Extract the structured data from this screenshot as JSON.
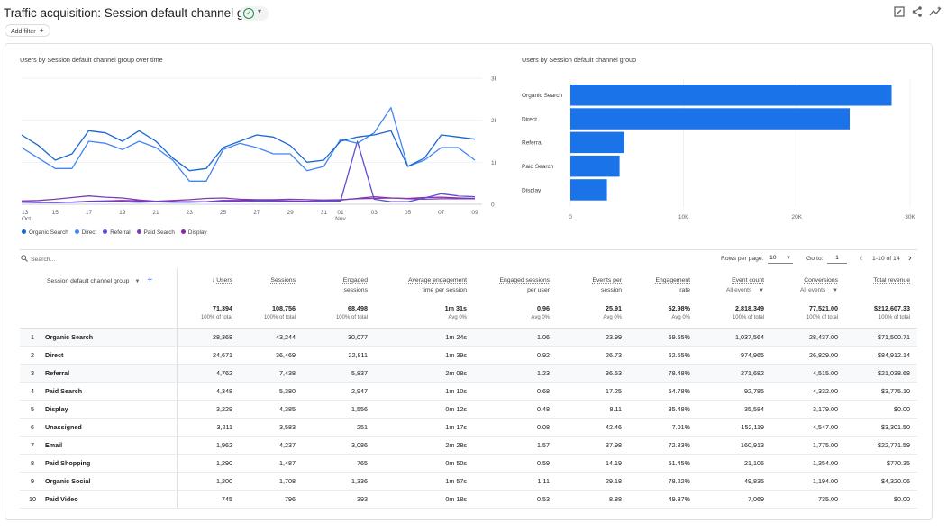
{
  "page": {
    "title": "Traffic acquisition: Session default channel group",
    "add_filter_label": "Add filter",
    "add_filter_plus": "+"
  },
  "colors": {
    "organic_search": "#1967d2",
    "direct": "#4285f4",
    "referral": "#5a4fcf",
    "paid_search": "#7b3fb0",
    "display": "#8e24aa",
    "bar": "#1a73e8"
  },
  "line_chart": {
    "title": "Users by Session default channel group over time",
    "y_ticks": [
      "3K",
      "2K",
      "1K",
      "0"
    ],
    "x_ticks": [
      "13",
      "15",
      "17",
      "19",
      "21",
      "23",
      "25",
      "27",
      "29",
      "31",
      "01",
      "03",
      "05",
      "07",
      "09"
    ],
    "x_tick_month_labels": [
      {
        "tick_index": 0,
        "label": "Oct"
      },
      {
        "tick_index": 10,
        "label": "Nov"
      }
    ]
  },
  "bar_chart": {
    "title": "Users by Session default channel group",
    "x_ticks": [
      "0",
      "10K",
      "20K",
      "30K"
    ]
  },
  "legend": [
    {
      "label": "Organic Search",
      "color_key": "organic_search"
    },
    {
      "label": "Direct",
      "color_key": "direct"
    },
    {
      "label": "Referral",
      "color_key": "referral"
    },
    {
      "label": "Paid Search",
      "color_key": "paid_search"
    },
    {
      "label": "Display",
      "color_key": "display"
    }
  ],
  "chart_data": [
    {
      "type": "line",
      "title": "Users by Session default channel group over time",
      "x": [
        "Oct 13",
        "Oct 14",
        "Oct 15",
        "Oct 16",
        "Oct 17",
        "Oct 18",
        "Oct 19",
        "Oct 20",
        "Oct 21",
        "Oct 22",
        "Oct 23",
        "Oct 24",
        "Oct 25",
        "Oct 26",
        "Oct 27",
        "Oct 28",
        "Oct 29",
        "Oct 30",
        "Oct 31",
        "Nov 01",
        "Nov 02",
        "Nov 03",
        "Nov 04",
        "Nov 05",
        "Nov 06",
        "Nov 07",
        "Nov 08",
        "Nov 09"
      ],
      "ylim": [
        0,
        3000
      ],
      "y_ticks": [
        0,
        1000,
        2000,
        3000
      ],
      "series": [
        {
          "name": "Organic Search",
          "values": [
            1650,
            1400,
            1050,
            1200,
            1750,
            1700,
            1500,
            1750,
            1500,
            1100,
            800,
            850,
            1350,
            1500,
            1650,
            1600,
            1400,
            1000,
            1050,
            1500,
            1600,
            1650,
            1750,
            900,
            1100,
            1650,
            1600,
            1550
          ]
        },
        {
          "name": "Direct",
          "values": [
            1350,
            1100,
            850,
            850,
            1500,
            1450,
            1300,
            1500,
            1350,
            1050,
            550,
            550,
            1300,
            1450,
            1350,
            1200,
            1200,
            800,
            900,
            1550,
            1450,
            1700,
            2300,
            900,
            1050,
            1350,
            1350,
            1050
          ]
        },
        {
          "name": "Referral",
          "values": [
            60,
            50,
            40,
            50,
            60,
            70,
            60,
            50,
            60,
            50,
            50,
            60,
            70,
            60,
            80,
            70,
            60,
            60,
            70,
            80,
            1500,
            120,
            60,
            60,
            150,
            250,
            200,
            180
          ]
        },
        {
          "name": "Paid Search",
          "values": [
            80,
            90,
            120,
            160,
            200,
            170,
            150,
            100,
            70,
            90,
            110,
            140,
            150,
            120,
            110,
            110,
            120,
            110,
            100,
            110,
            130,
            140,
            150,
            130,
            120,
            130,
            130,
            130
          ]
        },
        {
          "name": "Display",
          "values": [
            50,
            40,
            40,
            50,
            70,
            80,
            90,
            80,
            70,
            60,
            60,
            60,
            90,
            90,
            100,
            90,
            80,
            70,
            90,
            100,
            140,
            180,
            150,
            140,
            160,
            170,
            150,
            140
          ]
        }
      ]
    },
    {
      "type": "bar",
      "orientation": "horizontal",
      "title": "Users by Session default channel group",
      "categories": [
        "Organic Search",
        "Direct",
        "Referral",
        "Paid Search",
        "Display"
      ],
      "values": [
        28368,
        24671,
        4762,
        4348,
        3229
      ],
      "xlim": [
        0,
        30000
      ],
      "x_ticks": [
        0,
        10000,
        20000,
        30000
      ]
    }
  ],
  "toolbar": {
    "search_placeholder": "Search...",
    "rows_per_page_label": "Rows per page:",
    "rows_per_page_value": "10",
    "goto_label": "Go to:",
    "goto_value": "1",
    "page_range": "1-10 of 14"
  },
  "table": {
    "dimension_header": "Session default channel group",
    "sort_arrow": "↓",
    "columns": [
      {
        "line1": "Users",
        "line2": ""
      },
      {
        "line1": "Sessions",
        "line2": ""
      },
      {
        "line1": "Engaged",
        "line2": "sessions"
      },
      {
        "line1": "Average engagement",
        "line2": "time per session"
      },
      {
        "line1": "Engaged sessions",
        "line2": "per user"
      },
      {
        "line1": "Events per",
        "line2": "session"
      },
      {
        "line1": "Engagement",
        "line2": "rate"
      },
      {
        "line1": "Event count",
        "line2": "All events"
      },
      {
        "line1": "Conversions",
        "line2": "All events"
      },
      {
        "line1": "Total revenue",
        "line2": ""
      }
    ],
    "totals": [
      {
        "value": "71,394",
        "sub": "100% of total"
      },
      {
        "value": "108,756",
        "sub": "100% of total"
      },
      {
        "value": "68,498",
        "sub": "100% of total"
      },
      {
        "value": "1m 31s",
        "sub": "Avg 0%"
      },
      {
        "value": "0.96",
        "sub": "Avg 0%"
      },
      {
        "value": "25.91",
        "sub": "Avg 0%"
      },
      {
        "value": "62.98%",
        "sub": "Avg 0%"
      },
      {
        "value": "2,818,349",
        "sub": "100% of total"
      },
      {
        "value": "77,521.00",
        "sub": "100% of total"
      },
      {
        "value": "$212,607.33",
        "sub": "100% of total"
      }
    ],
    "rows": [
      {
        "rank": "1",
        "name": "Organic Search",
        "cells": [
          "28,368",
          "43,244",
          "30,077",
          "1m 24s",
          "1.06",
          "23.99",
          "69.55%",
          "1,037,564",
          "28,437.00",
          "$71,500.71"
        ]
      },
      {
        "rank": "2",
        "name": "Direct",
        "cells": [
          "24,671",
          "36,469",
          "22,811",
          "1m 39s",
          "0.92",
          "26.73",
          "62.55%",
          "974,965",
          "26,829.00",
          "$84,912.14"
        ]
      },
      {
        "rank": "3",
        "name": "Referral",
        "cells": [
          "4,762",
          "7,438",
          "5,837",
          "2m 08s",
          "1.23",
          "36.53",
          "78.48%",
          "271,682",
          "4,515.00",
          "$21,038.68"
        ]
      },
      {
        "rank": "4",
        "name": "Paid Search",
        "cells": [
          "4,348",
          "5,380",
          "2,947",
          "1m 10s",
          "0.68",
          "17.25",
          "54.78%",
          "92,785",
          "4,332.00",
          "$3,775.10"
        ]
      },
      {
        "rank": "5",
        "name": "Display",
        "cells": [
          "3,229",
          "4,385",
          "1,556",
          "0m 12s",
          "0.48",
          "8.11",
          "35.48%",
          "35,584",
          "3,179.00",
          "$0.00"
        ]
      },
      {
        "rank": "6",
        "name": "Unassigned",
        "cells": [
          "3,211",
          "3,583",
          "251",
          "1m 17s",
          "0.08",
          "42.46",
          "7.01%",
          "152,119",
          "4,547.00",
          "$3,301.50"
        ]
      },
      {
        "rank": "7",
        "name": "Email",
        "cells": [
          "1,962",
          "4,237",
          "3,086",
          "2m 28s",
          "1.57",
          "37.98",
          "72.83%",
          "160,913",
          "1,775.00",
          "$22,771.59"
        ]
      },
      {
        "rank": "8",
        "name": "Paid Shopping",
        "cells": [
          "1,290",
          "1,487",
          "765",
          "0m 50s",
          "0.59",
          "14.19",
          "51.45%",
          "21,106",
          "1,354.00",
          "$770.35"
        ]
      },
      {
        "rank": "9",
        "name": "Organic Social",
        "cells": [
          "1,200",
          "1,708",
          "1,336",
          "1m 57s",
          "1.11",
          "29.18",
          "78.22%",
          "49,835",
          "1,194.00",
          "$4,320.06"
        ]
      },
      {
        "rank": "10",
        "name": "Paid Video",
        "cells": [
          "745",
          "796",
          "393",
          "0m 18s",
          "0.53",
          "8.88",
          "49.37%",
          "7,069",
          "735.00",
          "$0.00"
        ]
      }
    ]
  }
}
